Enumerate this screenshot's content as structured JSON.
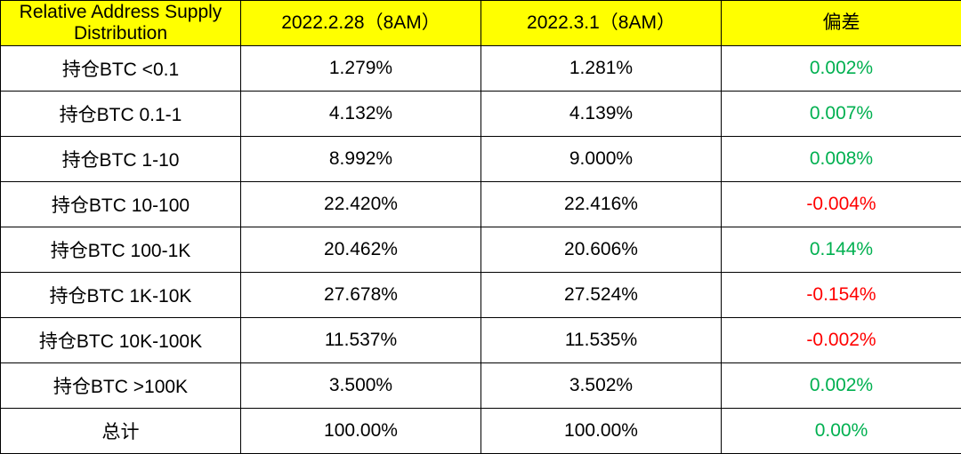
{
  "chart_data": {
    "type": "table",
    "columns": [
      "Relative Address Supply Distribution",
      "2022.2.28（8AM）",
      "2022.3.1（8AM）",
      "偏差"
    ],
    "rows": [
      {
        "label": "持仓BTC <0.1",
        "v1": "1.279%",
        "v2": "1.281%",
        "diff": "0.002%",
        "sign": "pos"
      },
      {
        "label": "持仓BTC 0.1-1",
        "v1": "4.132%",
        "v2": "4.139%",
        "diff": "0.007%",
        "sign": "pos"
      },
      {
        "label": "持仓BTC 1-10",
        "v1": "8.992%",
        "v2": "9.000%",
        "diff": "0.008%",
        "sign": "pos"
      },
      {
        "label": "持仓BTC 10-100",
        "v1": "22.420%",
        "v2": "22.416%",
        "diff": "-0.004%",
        "sign": "neg"
      },
      {
        "label": "持仓BTC 100-1K",
        "v1": "20.462%",
        "v2": "20.606%",
        "diff": "0.144%",
        "sign": "pos"
      },
      {
        "label": "持仓BTC 1K-10K",
        "v1": "27.678%",
        "v2": "27.524%",
        "diff": "-0.154%",
        "sign": "neg"
      },
      {
        "label": "持仓BTC 10K-100K",
        "v1": "11.537%",
        "v2": "11.535%",
        "diff": "-0.002%",
        "sign": "neg"
      },
      {
        "label": "持仓BTC >100K",
        "v1": "3.500%",
        "v2": "3.502%",
        "diff": "0.002%",
        "sign": "pos"
      },
      {
        "label": "总计",
        "v1": "100.00%",
        "v2": "100.00%",
        "diff": "0.00%",
        "sign": "pos"
      }
    ]
  },
  "colors": {
    "header_bg": "#ffff00",
    "positive": "#00b050",
    "negative": "#ff0000",
    "border": "#000000"
  }
}
